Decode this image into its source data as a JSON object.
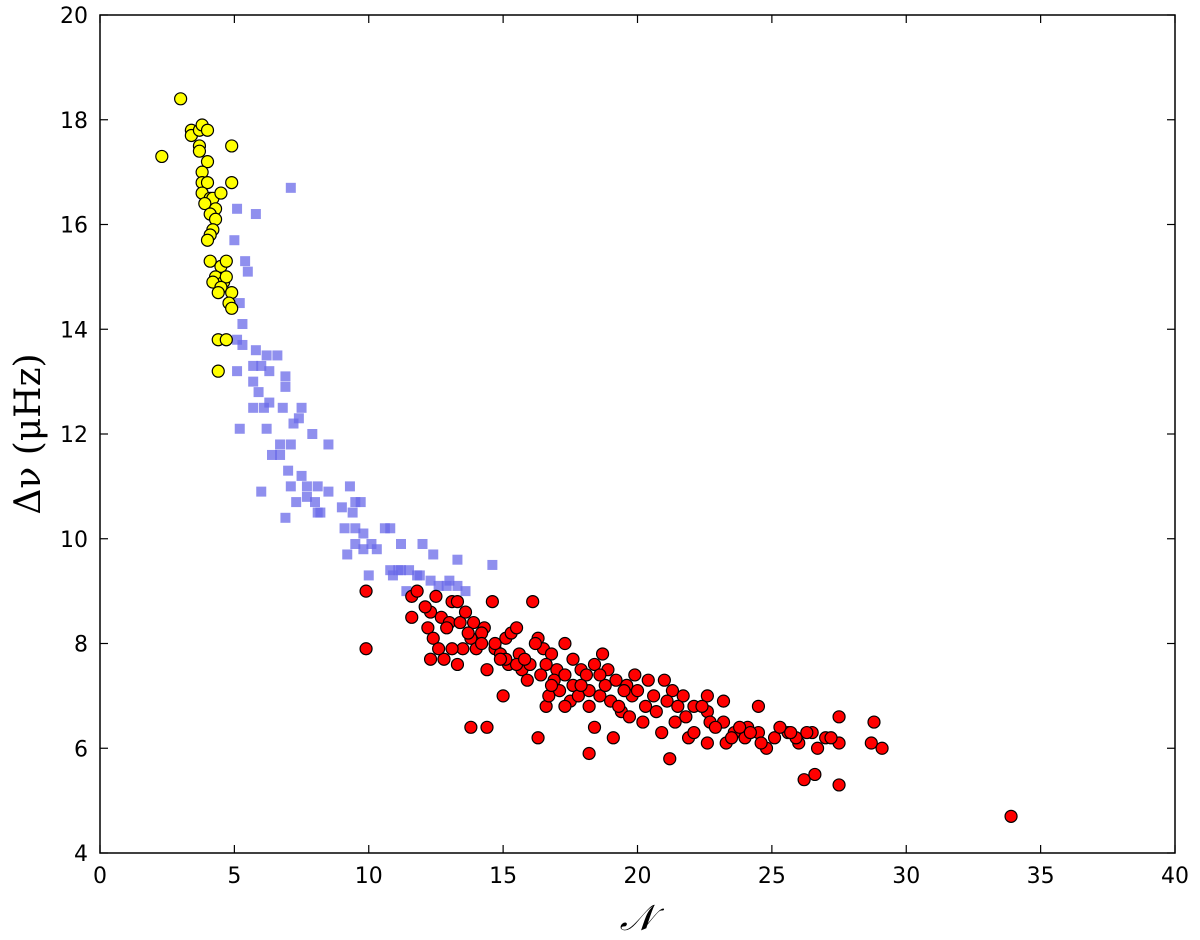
{
  "chart_data": {
    "type": "scatter",
    "title": "",
    "xlabel": "𝒩",
    "ylabel": "Δν (μHz)",
    "xlim": [
      0,
      40
    ],
    "ylim": [
      4,
      20
    ],
    "xticks": [
      0,
      5,
      10,
      15,
      20,
      25,
      30,
      35,
      40
    ],
    "yticks": [
      4,
      6,
      8,
      10,
      12,
      14,
      16,
      18,
      20
    ],
    "grid": false,
    "legend": "none",
    "series": [
      {
        "marker": "square",
        "color": "#6a6ae8",
        "opacity": 0.75,
        "points": [
          [
            5.1,
            16.3
          ],
          [
            5.8,
            16.2
          ],
          [
            7.1,
            16.7
          ],
          [
            5.0,
            15.7
          ],
          [
            5.4,
            15.3
          ],
          [
            5.5,
            15.1
          ],
          [
            5.2,
            14.5
          ],
          [
            5.3,
            14.1
          ],
          [
            5.1,
            13.8
          ],
          [
            5.3,
            13.7
          ],
          [
            5.8,
            13.6
          ],
          [
            6.2,
            13.5
          ],
          [
            6.6,
            13.5
          ],
          [
            5.7,
            13.3
          ],
          [
            6.0,
            13.3
          ],
          [
            5.1,
            13.2
          ],
          [
            6.3,
            13.2
          ],
          [
            5.7,
            13.0
          ],
          [
            6.9,
            13.1
          ],
          [
            6.9,
            12.9
          ],
          [
            5.9,
            12.8
          ],
          [
            5.7,
            12.5
          ],
          [
            6.1,
            12.5
          ],
          [
            6.3,
            12.6
          ],
          [
            6.8,
            12.5
          ],
          [
            7.5,
            12.5
          ],
          [
            5.2,
            12.1
          ],
          [
            6.2,
            12.1
          ],
          [
            7.4,
            12.3
          ],
          [
            7.2,
            12.2
          ],
          [
            7.9,
            12.0
          ],
          [
            6.7,
            11.8
          ],
          [
            7.1,
            11.8
          ],
          [
            8.5,
            11.8
          ],
          [
            6.4,
            11.6
          ],
          [
            6.7,
            11.6
          ],
          [
            7.0,
            11.3
          ],
          [
            7.5,
            11.2
          ],
          [
            7.1,
            11.0
          ],
          [
            7.7,
            11.0
          ],
          [
            8.1,
            11.0
          ],
          [
            9.3,
            11.0
          ],
          [
            6.0,
            10.9
          ],
          [
            7.7,
            10.8
          ],
          [
            8.5,
            10.9
          ],
          [
            7.3,
            10.7
          ],
          [
            8.0,
            10.7
          ],
          [
            9.5,
            10.7
          ],
          [
            9.7,
            10.7
          ],
          [
            9.0,
            10.6
          ],
          [
            8.1,
            10.5
          ],
          [
            8.2,
            10.5
          ],
          [
            9.4,
            10.5
          ],
          [
            6.9,
            10.4
          ],
          [
            9.1,
            10.2
          ],
          [
            9.5,
            10.2
          ],
          [
            10.6,
            10.2
          ],
          [
            10.8,
            10.2
          ],
          [
            9.8,
            10.1
          ],
          [
            12.0,
            9.9
          ],
          [
            9.5,
            9.9
          ],
          [
            9.8,
            9.8
          ],
          [
            10.1,
            9.9
          ],
          [
            10.3,
            9.8
          ],
          [
            11.2,
            9.9
          ],
          [
            9.2,
            9.7
          ],
          [
            12.4,
            9.7
          ],
          [
            13.3,
            9.6
          ],
          [
            14.6,
            9.5
          ],
          [
            10.8,
            9.4
          ],
          [
            11.1,
            9.4
          ],
          [
            11.2,
            9.4
          ],
          [
            11.5,
            9.4
          ],
          [
            10.9,
            9.3
          ],
          [
            11.8,
            9.3
          ],
          [
            11.9,
            9.3
          ],
          [
            10.0,
            9.3
          ],
          [
            12.3,
            9.2
          ],
          [
            13.0,
            9.2
          ],
          [
            12.6,
            9.1
          ],
          [
            12.9,
            9.1
          ],
          [
            13.3,
            9.1
          ],
          [
            13.6,
            9.0
          ],
          [
            11.4,
            9.0
          ]
        ]
      },
      {
        "marker": "circle",
        "color": "#ffff00",
        "points": [
          [
            2.3,
            17.3
          ],
          [
            3.0,
            18.4
          ],
          [
            3.4,
            17.8
          ],
          [
            3.4,
            17.7
          ],
          [
            3.7,
            17.8
          ],
          [
            3.8,
            17.9
          ],
          [
            4.0,
            17.8
          ],
          [
            3.7,
            17.5
          ],
          [
            3.7,
            17.4
          ],
          [
            4.0,
            17.2
          ],
          [
            4.9,
            17.5
          ],
          [
            3.8,
            17.0
          ],
          [
            3.8,
            16.8
          ],
          [
            4.0,
            16.8
          ],
          [
            4.9,
            16.8
          ],
          [
            3.8,
            16.6
          ],
          [
            4.1,
            16.5
          ],
          [
            4.2,
            16.5
          ],
          [
            4.5,
            16.6
          ],
          [
            3.9,
            16.4
          ],
          [
            4.3,
            16.3
          ],
          [
            4.1,
            16.2
          ],
          [
            4.3,
            16.1
          ],
          [
            4.2,
            15.9
          ],
          [
            4.1,
            15.8
          ],
          [
            4.0,
            15.7
          ],
          [
            4.1,
            15.3
          ],
          [
            4.5,
            15.2
          ],
          [
            4.7,
            15.3
          ],
          [
            4.3,
            15.0
          ],
          [
            4.6,
            14.9
          ],
          [
            4.7,
            15.0
          ],
          [
            4.2,
            14.9
          ],
          [
            4.5,
            14.8
          ],
          [
            4.9,
            14.7
          ],
          [
            4.4,
            14.7
          ],
          [
            4.8,
            14.5
          ],
          [
            4.9,
            14.4
          ],
          [
            4.4,
            13.8
          ],
          [
            4.7,
            13.8
          ],
          [
            4.4,
            13.2
          ]
        ]
      },
      {
        "marker": "circle",
        "color": "#ff0000",
        "points": [
          [
            9.9,
            9.0
          ],
          [
            9.9,
            7.9
          ],
          [
            11.6,
            8.9
          ],
          [
            11.8,
            9.0
          ],
          [
            11.6,
            8.5
          ],
          [
            12.3,
            8.6
          ],
          [
            12.2,
            8.3
          ],
          [
            12.5,
            8.9
          ],
          [
            13.1,
            8.8
          ],
          [
            13.3,
            8.8
          ],
          [
            12.4,
            8.1
          ],
          [
            12.7,
            8.5
          ],
          [
            13.0,
            8.4
          ],
          [
            13.4,
            8.4
          ],
          [
            13.6,
            8.6
          ],
          [
            13.9,
            8.4
          ],
          [
            14.6,
            8.8
          ],
          [
            14.3,
            8.3
          ],
          [
            14.2,
            8.2
          ],
          [
            13.8,
            8.1
          ],
          [
            13.5,
            7.9
          ],
          [
            12.8,
            7.7
          ],
          [
            12.3,
            7.7
          ],
          [
            13.3,
            7.6
          ],
          [
            14.0,
            7.9
          ],
          [
            14.7,
            7.9
          ],
          [
            14.9,
            7.8
          ],
          [
            15.1,
            8.1
          ],
          [
            15.3,
            8.2
          ],
          [
            15.6,
            7.8
          ],
          [
            15.2,
            7.6
          ],
          [
            15.7,
            7.5
          ],
          [
            16.1,
            8.8
          ],
          [
            16.3,
            8.1
          ],
          [
            16.0,
            7.6
          ],
          [
            16.5,
            7.9
          ],
          [
            16.8,
            7.8
          ],
          [
            17.0,
            7.5
          ],
          [
            17.3,
            8.0
          ],
          [
            16.9,
            7.3
          ],
          [
            17.1,
            7.1
          ],
          [
            17.6,
            7.2
          ],
          [
            17.9,
            7.5
          ],
          [
            18.1,
            7.4
          ],
          [
            18.4,
            7.6
          ],
          [
            18.7,
            7.8
          ],
          [
            18.9,
            7.5
          ],
          [
            19.2,
            7.3
          ],
          [
            19.6,
            7.2
          ],
          [
            19.9,
            7.4
          ],
          [
            17.5,
            6.9
          ],
          [
            17.8,
            7.0
          ],
          [
            18.2,
            6.8
          ],
          [
            18.6,
            7.0
          ],
          [
            19.0,
            6.9
          ],
          [
            19.4,
            6.7
          ],
          [
            19.8,
            7.0
          ],
          [
            20.3,
            6.8
          ],
          [
            20.6,
            7.0
          ],
          [
            21.0,
            7.3
          ],
          [
            21.3,
            7.1
          ],
          [
            21.7,
            7.0
          ],
          [
            22.1,
            6.8
          ],
          [
            22.6,
            6.7
          ],
          [
            23.2,
            6.9
          ],
          [
            22.7,
            6.5
          ],
          [
            23.2,
            6.5
          ],
          [
            23.6,
            6.3
          ],
          [
            24.1,
            6.4
          ],
          [
            24.5,
            6.3
          ],
          [
            25.1,
            6.2
          ],
          [
            25.6,
            6.3
          ],
          [
            26.0,
            6.1
          ],
          [
            26.5,
            6.3
          ],
          [
            27.0,
            6.2
          ],
          [
            27.5,
            6.1
          ],
          [
            27.5,
            6.6
          ],
          [
            28.8,
            6.5
          ],
          [
            28.7,
            6.1
          ],
          [
            29.1,
            6.0
          ],
          [
            16.6,
            6.8
          ],
          [
            15.0,
            7.0
          ],
          [
            14.4,
            6.4
          ],
          [
            16.3,
            6.2
          ],
          [
            18.2,
            5.9
          ],
          [
            21.2,
            5.8
          ],
          [
            26.2,
            5.4
          ],
          [
            26.6,
            5.5
          ],
          [
            27.5,
            5.3
          ],
          [
            13.8,
            6.4
          ],
          [
            20.9,
            6.3
          ],
          [
            21.9,
            6.2
          ],
          [
            22.6,
            6.1
          ],
          [
            23.3,
            6.1
          ],
          [
            24.8,
            6.0
          ],
          [
            25.9,
            6.2
          ],
          [
            24.5,
            6.8
          ],
          [
            22.6,
            7.0
          ],
          [
            20.4,
            7.3
          ],
          [
            19.1,
            6.2
          ],
          [
            20.2,
            6.5
          ],
          [
            18.4,
            6.4
          ],
          [
            17.3,
            6.8
          ],
          [
            16.7,
            7.0
          ],
          [
            15.9,
            7.3
          ],
          [
            15.5,
            7.6
          ],
          [
            15.1,
            7.7
          ],
          [
            14.4,
            7.5
          ],
          [
            14.7,
            8.0
          ],
          [
            15.5,
            8.3
          ],
          [
            16.2,
            8.0
          ],
          [
            16.6,
            7.6
          ],
          [
            16.8,
            7.2
          ],
          [
            17.3,
            7.4
          ],
          [
            18.2,
            7.1
          ],
          [
            18.8,
            7.2
          ],
          [
            19.3,
            6.8
          ],
          [
            19.7,
            6.6
          ],
          [
            20.7,
            6.7
          ],
          [
            21.4,
            6.5
          ],
          [
            21.8,
            6.6
          ],
          [
            22.1,
            6.3
          ],
          [
            22.9,
            6.4
          ],
          [
            23.5,
            6.2
          ],
          [
            24.0,
            6.2
          ],
          [
            24.6,
            6.1
          ],
          [
            25.3,
            6.4
          ],
          [
            26.7,
            6.0
          ],
          [
            27.2,
            6.2
          ],
          [
            12.6,
            7.9
          ],
          [
            13.1,
            7.9
          ],
          [
            14.9,
            7.7
          ],
          [
            17.6,
            7.7
          ],
          [
            18.6,
            7.4
          ],
          [
            20.0,
            7.1
          ],
          [
            21.1,
            6.9
          ],
          [
            21.5,
            6.8
          ],
          [
            22.4,
            6.8
          ],
          [
            23.8,
            6.4
          ],
          [
            24.2,
            6.3
          ],
          [
            25.7,
            6.3
          ],
          [
            26.3,
            6.3
          ],
          [
            19.5,
            7.1
          ],
          [
            17.9,
            7.2
          ],
          [
            16.4,
            7.4
          ],
          [
            15.8,
            7.7
          ],
          [
            14.2,
            8.0
          ],
          [
            13.7,
            8.2
          ],
          [
            12.9,
            8.3
          ],
          [
            12.1,
            8.7
          ],
          [
            33.9,
            4.7
          ]
        ]
      }
    ]
  }
}
